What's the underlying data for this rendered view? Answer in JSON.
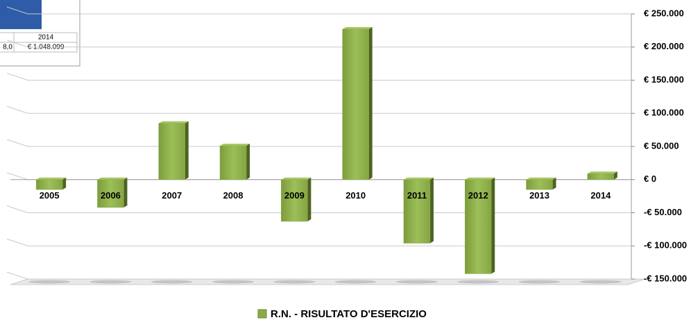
{
  "chart_data": {
    "type": "bar",
    "categories": [
      "2005",
      "2006",
      "2007",
      "2008",
      "2009",
      "2010",
      "2011",
      "2012",
      "2013",
      "2014"
    ],
    "series": [
      {
        "name": "R.N. - RISULTATO D'ESERCIZIO",
        "color": "#8aab48",
        "values": [
          -15000,
          -42000,
          85000,
          51000,
          -63000,
          227000,
          -96000,
          -142000,
          -15000,
          9000
        ]
      }
    ],
    "ylim": [
      -150000,
      250000
    ],
    "yticks": [
      {
        "value": 250000,
        "label": "€ 250.000"
      },
      {
        "value": 200000,
        "label": "€ 200.000"
      },
      {
        "value": 150000,
        "label": "€ 150.000"
      },
      {
        "value": 100000,
        "label": "€ 100.000"
      },
      {
        "value": 50000,
        "label": "€ 50.000"
      },
      {
        "value": 0,
        "label": "€ 0"
      },
      {
        "value": -50000,
        "label": "-€ 50.000"
      },
      {
        "value": -100000,
        "label": "-€ 100.000"
      },
      {
        "value": -150000,
        "label": "-€ 150.000"
      }
    ],
    "grid": true,
    "legend": "bottom"
  },
  "table": {
    "header": "2014",
    "cells": [
      "8,0",
      "€ 1.048.099"
    ]
  }
}
